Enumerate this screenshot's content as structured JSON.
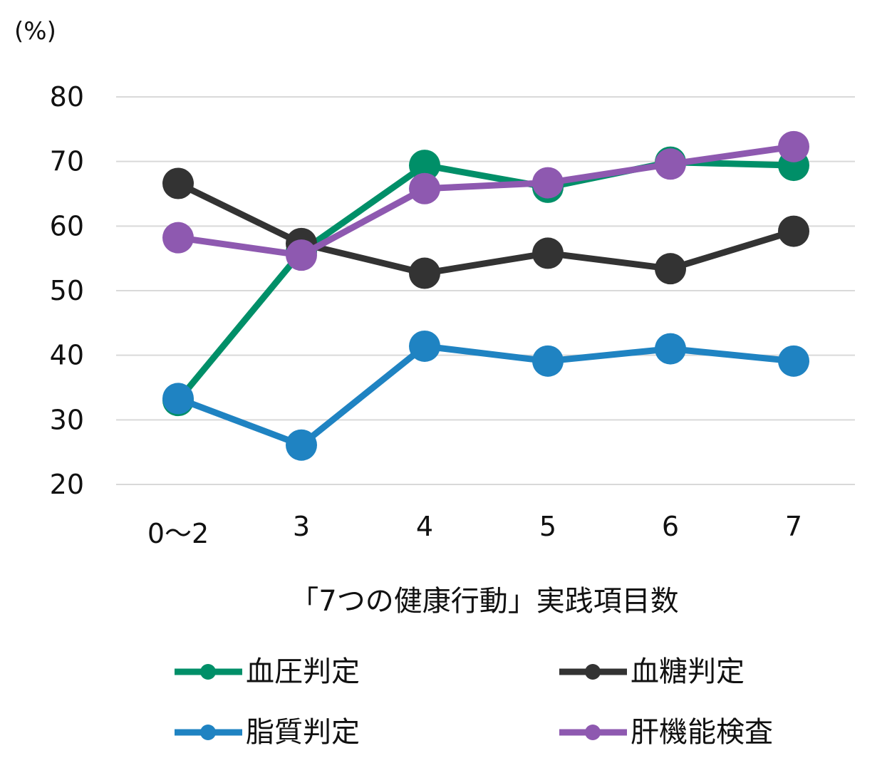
{
  "chart_data": {
    "type": "line",
    "unit_label": "(%)",
    "xlabel": "「7つの健康行動」実践項目数",
    "ylabel": "",
    "categories": [
      "0～2",
      "3",
      "4",
      "5",
      "6",
      "7"
    ],
    "ylim": [
      20,
      80
    ],
    "yticks": [
      20,
      30,
      40,
      50,
      60,
      70,
      80
    ],
    "grid": true,
    "legend_position": "bottom",
    "series": [
      {
        "name": "血圧判定",
        "color": "#008f68",
        "values": [
          33.0,
          56.0,
          69.4,
          66.0,
          69.9,
          69.4
        ]
      },
      {
        "name": "血糖判定",
        "color": "#333333",
        "values": [
          66.6,
          57.3,
          52.7,
          55.8,
          53.4,
          59.2
        ]
      },
      {
        "name": "脂質判定",
        "color": "#1f83c2",
        "values": [
          33.3,
          26.1,
          41.4,
          39.1,
          41.0,
          39.1
        ]
      },
      {
        "name": "肝機能検査",
        "color": "#8e59b0",
        "values": [
          58.2,
          55.5,
          65.8,
          66.7,
          69.6,
          72.3
        ]
      }
    ]
  }
}
